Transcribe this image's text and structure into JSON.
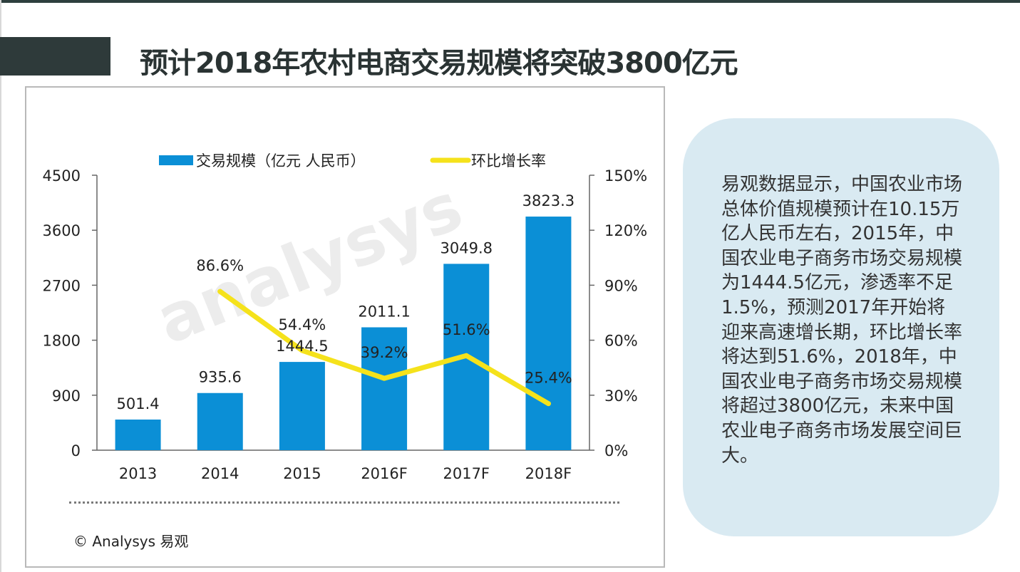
{
  "title": "预计2018年农村电商交易规模将突破3800亿元",
  "copyright": "© Analysys 易观",
  "watermark": "analysys",
  "description": " 易观数据显示，中国农业市场总体价值规模预计在10.15万亿人民币左右，2015年，中国农业电子商务市场交易规模为1444.5亿元，渗透率不足1.5%，预测2017年开始将迎来高速增长期，环比增长率将达到51.6%，2018年，中国农业电子商务市场交易规模将超过3800亿元，未来中国农业电子商务市场发展空间巨大。",
  "chart_data": {
    "type": "bar",
    "categories": [
      "2013",
      "2014",
      "2015",
      "2016F",
      "2017F",
      "2018F"
    ],
    "series": [
      {
        "name": "交易规模（亿元 人民币）",
        "type": "bar",
        "axis": "left",
        "color": "#0b8fd6",
        "values": [
          501.4,
          935.6,
          1444.5,
          2011.1,
          3049.8,
          3823.3
        ],
        "labels": [
          "501.4",
          "935.6",
          "1444.5",
          "2011.1",
          "3049.8",
          "3823.3"
        ]
      },
      {
        "name": "环比增长率",
        "type": "line",
        "axis": "right",
        "color": "#f5e21b",
        "values": [
          null,
          86.6,
          54.4,
          39.2,
          51.6,
          25.4
        ],
        "labels": [
          "",
          "86.6%",
          "54.4%",
          "39.2%",
          "51.6%",
          "25.4%"
        ]
      }
    ],
    "y_left": {
      "min": 0,
      "max": 4500,
      "ticks": [
        0,
        900,
        1800,
        2700,
        3600,
        4500
      ]
    },
    "y_right": {
      "min": 0,
      "max": 150,
      "ticks": [
        "0%",
        "30%",
        "60%",
        "90%",
        "120%",
        "150%"
      ]
    },
    "legend_position": "top-center",
    "grid": false
  }
}
